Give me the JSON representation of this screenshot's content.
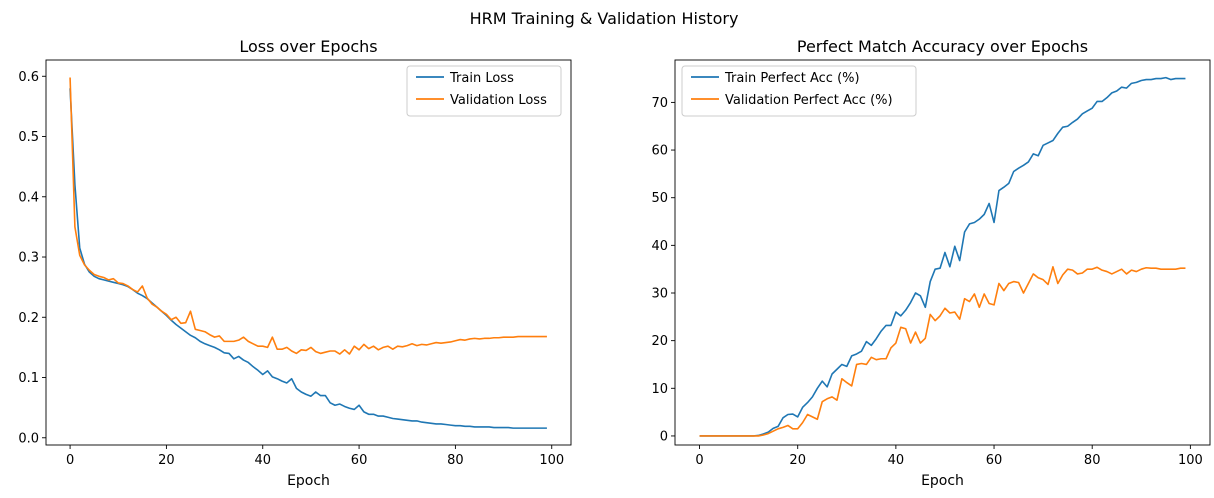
{
  "figure": {
    "title": "HRM Training & Validation History"
  },
  "chart_data": [
    {
      "type": "line",
      "title": "Loss over Epochs",
      "xlabel": "Epoch",
      "ylabel": "",
      "xlim": [
        -5,
        104
      ],
      "ylim": [
        -0.012,
        0.627
      ],
      "xticks": [
        "0",
        "20",
        "40",
        "60",
        "80",
        "100"
      ],
      "yticks": [
        "0.0",
        "0.1",
        "0.2",
        "0.3",
        "0.4",
        "0.5",
        "0.6"
      ],
      "legend": "top-right",
      "x": [
        0,
        1,
        2,
        3,
        4,
        5,
        6,
        7,
        8,
        9,
        10,
        11,
        12,
        13,
        14,
        15,
        16,
        17,
        18,
        19,
        20,
        21,
        22,
        23,
        24,
        25,
        26,
        27,
        28,
        29,
        30,
        31,
        32,
        33,
        34,
        35,
        36,
        37,
        38,
        39,
        40,
        41,
        42,
        43,
        44,
        45,
        46,
        47,
        48,
        49,
        50,
        51,
        52,
        53,
        54,
        55,
        56,
        57,
        58,
        59,
        60,
        61,
        62,
        63,
        64,
        65,
        66,
        67,
        68,
        69,
        70,
        71,
        72,
        73,
        74,
        75,
        76,
        77,
        78,
        79,
        80,
        81,
        82,
        83,
        84,
        85,
        86,
        87,
        88,
        89,
        90,
        91,
        92,
        93,
        94,
        95,
        96,
        97,
        98,
        99
      ],
      "series": [
        {
          "name": "Train Loss",
          "color": "#1f77b4",
          "values": [
            0.58,
            0.42,
            0.315,
            0.288,
            0.275,
            0.268,
            0.264,
            0.262,
            0.26,
            0.258,
            0.256,
            0.254,
            0.251,
            0.246,
            0.24,
            0.236,
            0.231,
            0.224,
            0.217,
            0.21,
            0.203,
            0.195,
            0.188,
            0.182,
            0.176,
            0.17,
            0.166,
            0.16,
            0.156,
            0.153,
            0.15,
            0.146,
            0.141,
            0.14,
            0.131,
            0.135,
            0.129,
            0.125,
            0.118,
            0.112,
            0.105,
            0.111,
            0.101,
            0.098,
            0.094,
            0.091,
            0.098,
            0.082,
            0.076,
            0.072,
            0.069,
            0.076,
            0.07,
            0.07,
            0.058,
            0.054,
            0.056,
            0.052,
            0.049,
            0.047,
            0.054,
            0.043,
            0.039,
            0.039,
            0.036,
            0.036,
            0.034,
            0.032,
            0.031,
            0.03,
            0.029,
            0.028,
            0.028,
            0.026,
            0.025,
            0.024,
            0.023,
            0.023,
            0.022,
            0.021,
            0.02,
            0.02,
            0.019,
            0.019,
            0.018,
            0.018,
            0.018,
            0.018,
            0.017,
            0.017,
            0.017,
            0.017,
            0.016,
            0.016,
            0.016,
            0.016,
            0.016,
            0.016,
            0.016,
            0.016
          ]
        },
        {
          "name": "Validation Loss",
          "color": "#ff7f0e",
          "values": [
            0.598,
            0.35,
            0.303,
            0.287,
            0.278,
            0.271,
            0.268,
            0.266,
            0.262,
            0.264,
            0.257,
            0.256,
            0.252,
            0.246,
            0.242,
            0.252,
            0.232,
            0.222,
            0.217,
            0.21,
            0.205,
            0.196,
            0.2,
            0.19,
            0.191,
            0.21,
            0.18,
            0.178,
            0.176,
            0.171,
            0.167,
            0.169,
            0.16,
            0.16,
            0.16,
            0.162,
            0.167,
            0.16,
            0.156,
            0.152,
            0.152,
            0.15,
            0.167,
            0.147,
            0.147,
            0.15,
            0.144,
            0.14,
            0.146,
            0.145,
            0.15,
            0.143,
            0.14,
            0.142,
            0.144,
            0.144,
            0.139,
            0.146,
            0.139,
            0.152,
            0.146,
            0.155,
            0.148,
            0.152,
            0.146,
            0.15,
            0.152,
            0.147,
            0.152,
            0.151,
            0.153,
            0.156,
            0.153,
            0.155,
            0.154,
            0.156,
            0.158,
            0.157,
            0.158,
            0.159,
            0.161,
            0.163,
            0.162,
            0.164,
            0.165,
            0.164,
            0.165,
            0.165,
            0.166,
            0.166,
            0.167,
            0.167,
            0.167,
            0.168,
            0.168,
            0.168,
            0.168,
            0.168,
            0.168,
            0.168
          ]
        }
      ]
    },
    {
      "type": "line",
      "title": "Perfect Match Accuracy over Epochs",
      "xlabel": "Epoch",
      "ylabel": "",
      "xlim": [
        -5,
        104
      ],
      "ylim": [
        -1.9,
        78.9
      ],
      "xticks": [
        "0",
        "20",
        "40",
        "60",
        "80",
        "100"
      ],
      "yticks": [
        "0",
        "10",
        "20",
        "30",
        "40",
        "50",
        "60",
        "70"
      ],
      "legend": "top-left",
      "x": [
        0,
        1,
        2,
        3,
        4,
        5,
        6,
        7,
        8,
        9,
        10,
        11,
        12,
        13,
        14,
        15,
        16,
        17,
        18,
        19,
        20,
        21,
        22,
        23,
        24,
        25,
        26,
        27,
        28,
        29,
        30,
        31,
        32,
        33,
        34,
        35,
        36,
        37,
        38,
        39,
        40,
        41,
        42,
        43,
        44,
        45,
        46,
        47,
        48,
        49,
        50,
        51,
        52,
        53,
        54,
        55,
        56,
        57,
        58,
        59,
        60,
        61,
        62,
        63,
        64,
        65,
        66,
        67,
        68,
        69,
        70,
        71,
        72,
        73,
        74,
        75,
        76,
        77,
        78,
        79,
        80,
        81,
        82,
        83,
        84,
        85,
        86,
        87,
        88,
        89,
        90,
        91,
        92,
        93,
        94,
        95,
        96,
        97,
        98,
        99
      ],
      "series": [
        {
          "name": "Train Perfect Acc (%)",
          "color": "#1f77b4",
          "values": [
            0,
            0,
            0,
            0,
            0,
            0,
            0,
            0,
            0,
            0,
            0,
            0,
            0.1,
            0.4,
            0.8,
            1.6,
            2.0,
            3.8,
            4.5,
            4.6,
            4.0,
            6.0,
            7.0,
            8.2,
            10.0,
            11.5,
            10.3,
            13.0,
            14.0,
            15.0,
            14.6,
            16.8,
            17.2,
            17.8,
            19.8,
            19.0,
            20.4,
            22.0,
            23.2,
            23.2,
            26.0,
            25.2,
            26.4,
            28.0,
            30.0,
            29.4,
            27.0,
            32.4,
            35.0,
            35.2,
            38.5,
            35.5,
            39.8,
            36.8,
            42.8,
            44.5,
            44.8,
            45.5,
            46.5,
            48.8,
            44.8,
            51.5,
            52.2,
            53.0,
            55.5,
            56.2,
            56.8,
            57.5,
            59.2,
            58.8,
            61.0,
            61.5,
            62.0,
            63.5,
            64.8,
            65.0,
            65.8,
            66.5,
            67.6,
            68.2,
            68.8,
            70.2,
            70.2,
            71.0,
            72.0,
            72.4,
            73.2,
            73.0,
            74.0,
            74.2,
            74.6,
            74.8,
            74.8,
            75.0,
            75.0,
            75.2,
            74.8,
            75.0,
            75.0,
            75.0
          ]
        },
        {
          "name": "Validation Perfect Acc (%)",
          "color": "#ff7f0e",
          "values": [
            0,
            0,
            0,
            0,
            0,
            0,
            0,
            0,
            0,
            0,
            0,
            0,
            0,
            0.2,
            0.5,
            1.0,
            1.5,
            1.8,
            2.2,
            1.5,
            1.5,
            2.8,
            4.5,
            4.0,
            3.5,
            7.2,
            7.8,
            8.2,
            7.5,
            12.0,
            11.2,
            10.5,
            15.0,
            15.2,
            15.0,
            16.5,
            16.0,
            16.2,
            16.2,
            18.5,
            19.5,
            22.8,
            22.5,
            19.5,
            21.8,
            19.5,
            20.5,
            25.5,
            24.2,
            25.2,
            26.8,
            25.8,
            26.0,
            24.5,
            28.8,
            28.2,
            29.8,
            27.0,
            29.8,
            27.8,
            27.5,
            32.0,
            30.5,
            32.0,
            32.4,
            32.2,
            30.0,
            32.0,
            34.0,
            33.2,
            32.8,
            31.8,
            35.5,
            32.0,
            33.8,
            35.0,
            34.8,
            34.0,
            34.2,
            35.0,
            35.0,
            35.4,
            34.8,
            34.5,
            34.0,
            34.5,
            35.0,
            34.0,
            34.8,
            34.5,
            35.0,
            35.3,
            35.2,
            35.2,
            35.0,
            35.0,
            35.0,
            35.0,
            35.2,
            35.2
          ]
        }
      ]
    }
  ]
}
